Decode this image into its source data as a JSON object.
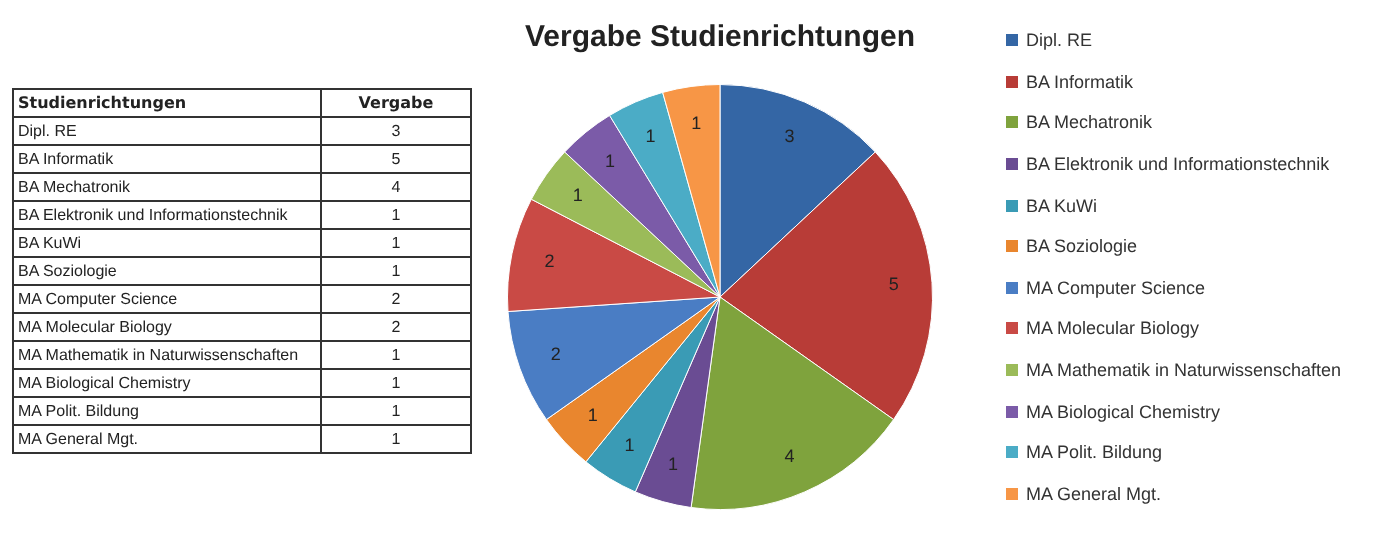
{
  "chart_data": [
    {
      "type": "other",
      "annotations": [
        "Studienrichtungen",
        "Vergabe"
      ],
      "categories": [
        "Dipl. RE",
        "BA Informatik",
        "BA Mechatronik",
        "BA Elektronik und Informationstechnik",
        "BA KuWi",
        "BA Soziologie",
        "MA Computer Science",
        "MA Molecular Biology",
        "MA Mathematik in Naturwissenschaften",
        "MA Biological Chemistry",
        "MA Polit. Bildung",
        "MA General Mgt."
      ],
      "values": [
        3,
        5,
        4,
        1,
        1,
        1,
        2,
        2,
        1,
        1,
        1,
        1
      ],
      "data_labels": true
    },
    {
      "type": "pie",
      "title": "Vergabe Studienrichtungen",
      "categories": [
        "Dipl. RE",
        "BA Informatik",
        "BA Mechatronik",
        "BA Elektronik und Informationstechnik",
        "BA KuWi",
        "BA Soziologie",
        "MA Computer Science",
        "MA Molecular Biology",
        "MA Mathematik in Naturwissenschaften",
        "MA Biological Chemistry",
        "MA Polit. Bildung",
        "MA General Mgt."
      ],
      "values": [
        3,
        5,
        4,
        1,
        1,
        1,
        2,
        2,
        1,
        1,
        1,
        1
      ],
      "colors": [
        "#3466a5",
        "#b83c37",
        "#7fa33d",
        "#6a4c93",
        "#3a9bb5",
        "#e9862e",
        "#4a7dc4",
        "#c94a45",
        "#9bbb59",
        "#7b5ba8",
        "#4bacc6",
        "#f79646"
      ],
      "data_labels": true,
      "legend": "right"
    }
  ]
}
